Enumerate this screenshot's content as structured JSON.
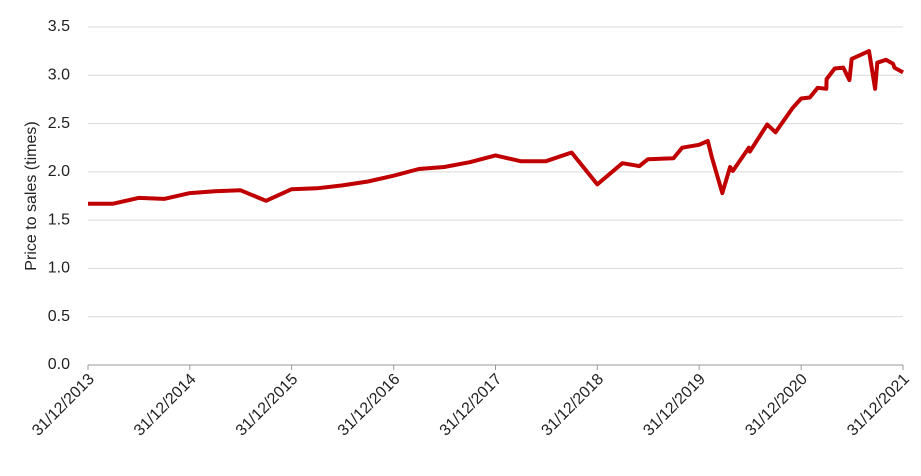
{
  "chart_data": {
    "type": "line",
    "y_label": "Price to sales (times)",
    "x": [
      "31/12/2013",
      "31/03/2014",
      "30/06/2014",
      "30/09/2014",
      "31/12/2014",
      "31/03/2015",
      "30/06/2015",
      "30/09/2015",
      "31/12/2015",
      "31/03/2016",
      "30/06/2016",
      "30/09/2016",
      "31/12/2016",
      "31/03/2017",
      "30/06/2017",
      "30/09/2017",
      "31/12/2017",
      "31/03/2018",
      "30/06/2018",
      "30/09/2018",
      "31/12/2018",
      "31/03/2019",
      "31/05/2019",
      "30/06/2019",
      "30/09/2019",
      "31/10/2019",
      "31/12/2019",
      "31/01/2020",
      "15/02/2020",
      "23/03/2020",
      "20/04/2020",
      "30/04/2020",
      "26/06/2020",
      "30/06/2020",
      "31/08/2020",
      "30/09/2020",
      "30/11/2020",
      "31/12/2020",
      "31/01/2021",
      "28/02/2021",
      "31/03/2021",
      "01/04/2021",
      "30/04/2021",
      "31/05/2021",
      "22/06/2021",
      "30/06/2021",
      "31/08/2021",
      "22/09/2021",
      "30/09/2021",
      "31/10/2021",
      "25/11/2021",
      "30/11/2021",
      "31/12/2021"
    ],
    "series": [
      {
        "name": "Price to sales",
        "color": "#c00000",
        "values": [
          1.67,
          1.67,
          1.73,
          1.72,
          1.78,
          1.8,
          1.81,
          1.7,
          1.82,
          1.83,
          1.86,
          1.9,
          1.96,
          2.03,
          2.05,
          2.1,
          2.17,
          2.11,
          2.11,
          2.2,
          1.87,
          2.09,
          2.06,
          2.13,
          2.14,
          2.25,
          2.28,
          2.32,
          2.15,
          1.78,
          2.05,
          2.01,
          2.25,
          2.21,
          2.49,
          2.41,
          2.66,
          2.76,
          2.77,
          2.87,
          2.86,
          2.96,
          3.07,
          3.08,
          2.95,
          3.17,
          3.25,
          2.86,
          3.13,
          3.16,
          3.12,
          3.08,
          3.03
        ]
      }
    ],
    "xlim": [
      "31/12/2013",
      "31/12/2021"
    ],
    "xticks": [
      "31/12/2013",
      "31/12/2014",
      "31/12/2015",
      "31/12/2016",
      "31/12/2017",
      "31/12/2018",
      "31/12/2019",
      "31/12/2020",
      "31/12/2021"
    ],
    "ylim": [
      0,
      3.5
    ],
    "yticks": [
      {
        "value": 0,
        "label": "0.0"
      },
      0.5,
      {
        "value": 1,
        "label": "1.0"
      },
      1.5,
      {
        "value": 2,
        "label": "2.0"
      },
      2.5,
      {
        "value": 3,
        "label": "3.0"
      },
      3.5
    ],
    "grid": true
  }
}
